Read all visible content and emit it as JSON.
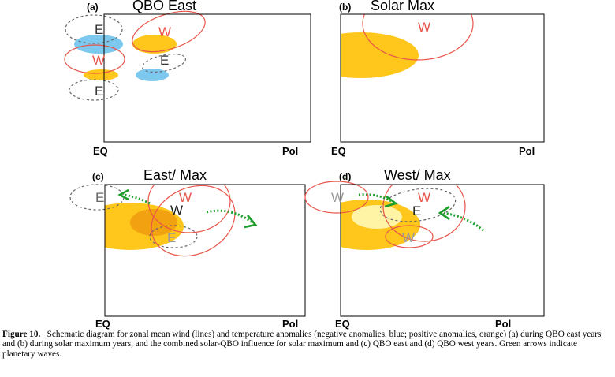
{
  "panels": [
    {
      "tag": "(a)",
      "title": "QBO East",
      "x_left": "EQ",
      "x_right": "Pol"
    },
    {
      "tag": "(b)",
      "title": "Solar Max",
      "x_left": "EQ",
      "x_right": "Pol"
    },
    {
      "tag": "(c)",
      "title": "East/ Max",
      "x_left": "EQ",
      "x_right": "Pol"
    },
    {
      "tag": "(d)",
      "title": "West/ Max",
      "x_left": "EQ",
      "x_right": "Pol"
    }
  ],
  "labels": {
    "west": "W",
    "east": "E"
  },
  "colors": {
    "westerly_line": "#e8554a",
    "easterly_line": "#666666",
    "negative_anomaly": "#7cc8ee",
    "positive_anomaly": "#ffc61c",
    "positive_anomaly_dark": "#f2a110",
    "positive_anomaly_light": "#fff3a6",
    "planetary_wave": "#1e9e2a"
  },
  "caption": {
    "lead": "Figure 10.",
    "text": "Schematic diagram for zonal mean wind (lines) and temperature anomalies (negative anomalies, blue; positive anomalies, orange) (a) during QBO east years and (b) during solar maximum years, and the combined solar-QBO influence for solar maximum and (c) QBO east and (d) QBO west years. Green arrows indicate planetary waves."
  }
}
